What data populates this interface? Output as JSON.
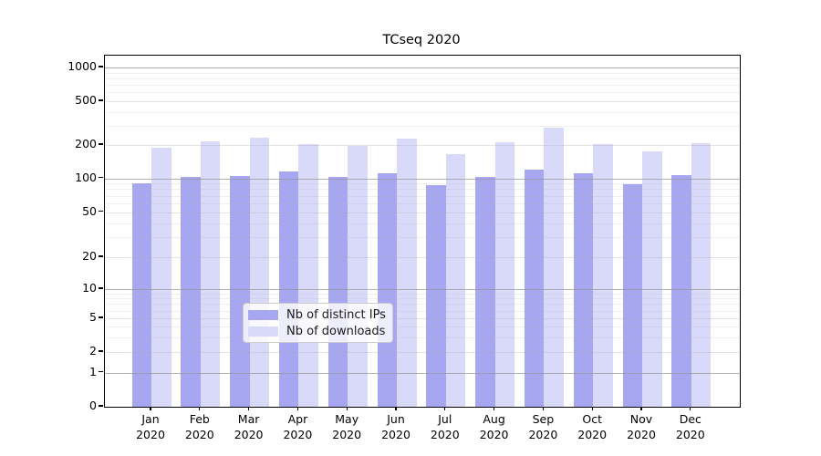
{
  "chart_data": {
    "type": "bar",
    "title": "TCseq 2020",
    "categories": [
      "Jan 2020",
      "Feb 2020",
      "Mar 2020",
      "Apr 2020",
      "May 2020",
      "Jun 2020",
      "Jul 2020",
      "Aug 2020",
      "Sep 2020",
      "Oct 2020",
      "Nov 2020",
      "Dec 2020"
    ],
    "x_tick_month": [
      "Jan",
      "Feb",
      "Mar",
      "Apr",
      "May",
      "Jun",
      "Jul",
      "Aug",
      "Sep",
      "Oct",
      "Nov",
      "Dec"
    ],
    "x_tick_year": "2020",
    "series": [
      {
        "name": "Nb of distinct IPs",
        "color": "#a6a6f1",
        "values": [
          90,
          103,
          105,
          115,
          103,
          110,
          87,
          103,
          119,
          110,
          88,
          107
        ]
      },
      {
        "name": "Nb of downloads",
        "color": "#d9d9fa",
        "values": [
          188,
          215,
          235,
          205,
          195,
          230,
          166,
          210,
          285,
          205,
          174,
          208
        ]
      }
    ],
    "ylabel": "",
    "xlabel": "",
    "yscale": "symlog",
    "yticks": [
      0,
      1,
      2,
      5,
      10,
      20,
      50,
      100,
      200,
      500,
      1000
    ],
    "ylim": [
      0,
      1000
    ],
    "grid": true,
    "legend": {
      "position": "lower center",
      "items": [
        "Nb of distinct IPs",
        "Nb of downloads"
      ]
    }
  }
}
